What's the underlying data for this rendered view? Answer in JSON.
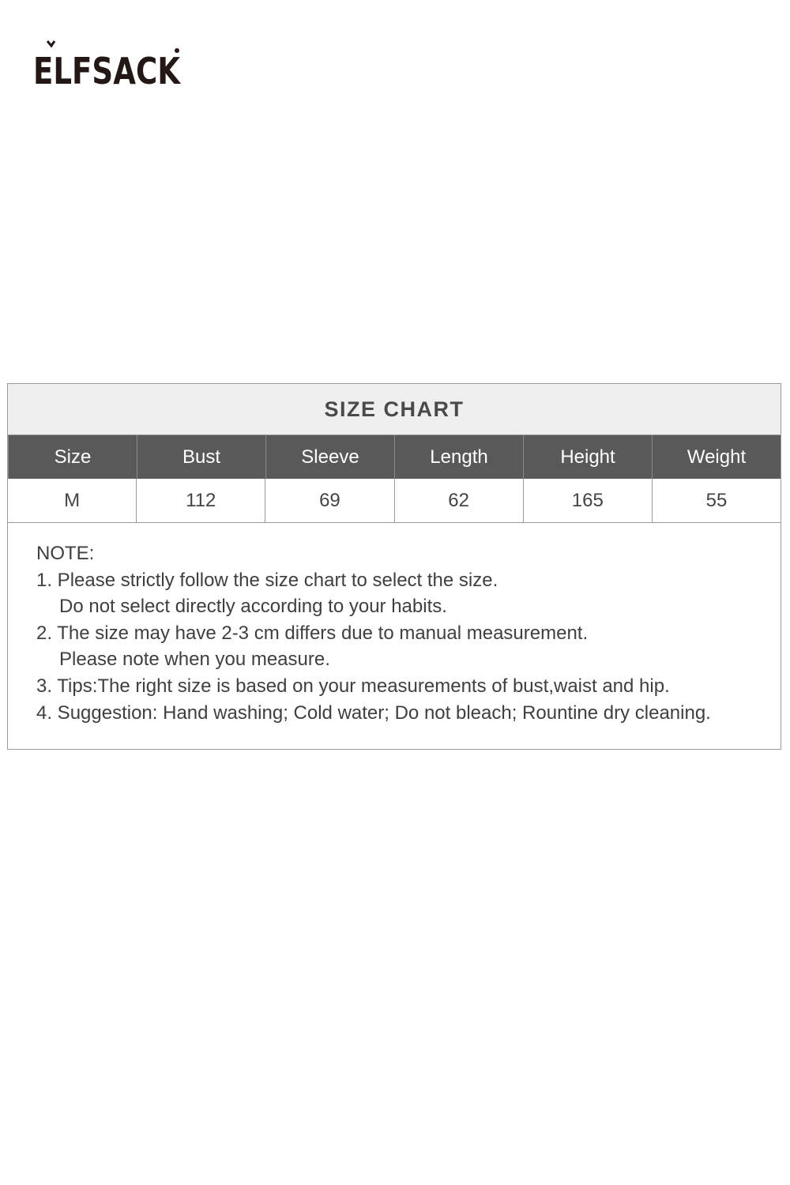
{
  "brand": {
    "logo_text": "ELFSACK"
  },
  "size_chart": {
    "title": "SIZE CHART",
    "headers": [
      "Size",
      "Bust",
      "Sleeve",
      "Length",
      "Height",
      "Weight"
    ],
    "rows": [
      [
        "M",
        "112",
        "69",
        "62",
        "165",
        "55"
      ]
    ]
  },
  "notes": {
    "heading": "NOTE:",
    "lines": [
      "1. Please strictly follow the size chart to select the size.",
      "Do not select directly according to your habits.",
      "2. The size may have 2-3 cm differs due to manual measurement.",
      "Please note when you measure.",
      "3. Tips:The right size is based on your measurements of bust,waist and hip.",
      "4. Suggestion: Hand washing; Cold water; Do not bleach; Rountine dry cleaning."
    ]
  }
}
